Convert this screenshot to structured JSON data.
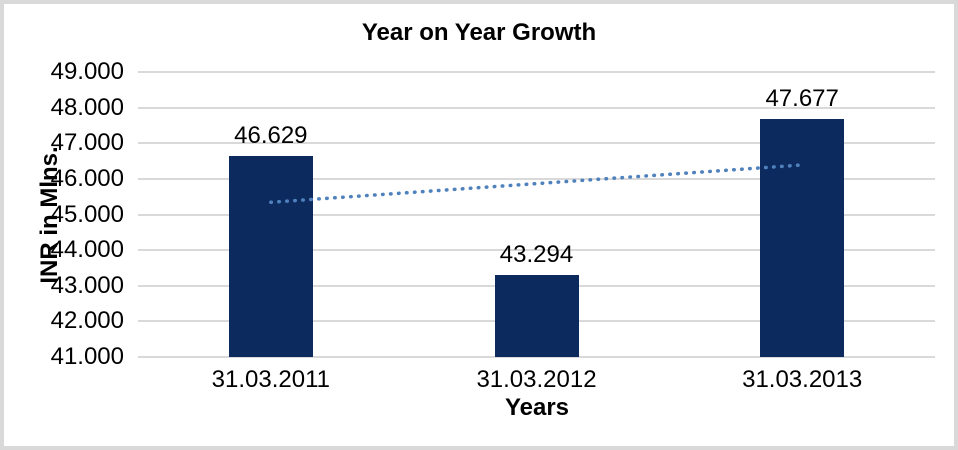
{
  "frame": {
    "background": "#ffffff",
    "border_color": "#d9d9d9"
  },
  "chart_data": {
    "type": "bar",
    "title": "Year on Year Growth",
    "xlabel": "Years",
    "ylabel": "INR in Mlns.",
    "categories": [
      "31.03.2011",
      "31.03.2012",
      "31.03.2013"
    ],
    "series": [
      {
        "name": "INR in Mlns.",
        "values": [
          46629,
          43294,
          47677
        ],
        "value_labels": [
          "46.629",
          "43.294",
          "47.677"
        ],
        "color": "#0d2a5e"
      }
    ],
    "data_labels_position": "outside-end",
    "ylim": [
      41000,
      49000
    ],
    "yticks": [
      {
        "value": 41000,
        "label": "41.000"
      },
      {
        "value": 42000,
        "label": "42.000"
      },
      {
        "value": 43000,
        "label": "43.000"
      },
      {
        "value": 44000,
        "label": "44.000"
      },
      {
        "value": 45000,
        "label": "45.000"
      },
      {
        "value": 46000,
        "label": "46.000"
      },
      {
        "value": 47000,
        "label": "47.000"
      },
      {
        "value": 48000,
        "label": "48.000"
      },
      {
        "value": 49000,
        "label": "49.000"
      }
    ],
    "number_format": "dot thousands separator",
    "grid": true,
    "gridline_color": "#d9d9d9",
    "legend": "none",
    "trendline": {
      "type": "linear",
      "style": "dotted",
      "color": "#4f81bd",
      "span": "first bar center to last bar center"
    }
  }
}
